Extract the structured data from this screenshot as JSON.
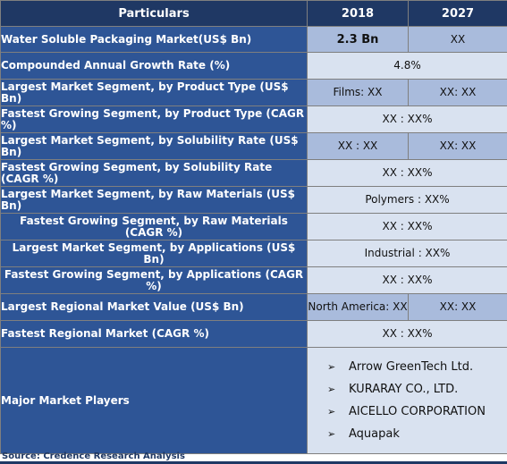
{
  "header": {
    "particulars": "Particulars",
    "year_2018": "2018",
    "year_2027": "2027"
  },
  "rows": [
    {
      "label": "Water Soluble Packaging Market(US$ Bn)",
      "v2018": "2.3 Bn",
      "v2027": "XX"
    },
    {
      "label": "Compounded Annual Growth Rate (%)",
      "value": "4.8%"
    },
    {
      "label": "Largest Market Segment, by Product Type (US$ Bn)",
      "v2018": "Films: XX",
      "v2027": "XX: XX"
    },
    {
      "label": "Fastest Growing Segment, by Product Type (CAGR %)",
      "value": "XX : XX%"
    },
    {
      "label": "Largest Market Segment, by Solubility Rate (US$ Bn)",
      "v2018": "XX : XX",
      "v2027": "XX: XX"
    },
    {
      "label": "Fastest Growing Segment, by Solubility Rate (CAGR %)",
      "value": "XX : XX%"
    },
    {
      "label": "Largest Market Segment, by Raw Materials (US$ Bn)",
      "value": "Polymers : XX%"
    },
    {
      "label": "Fastest Growing Segment, by Raw Materials (CAGR %)",
      "value": "XX : XX%"
    },
    {
      "label": "Largest Market Segment, by Applications (US$ Bn)",
      "value": "Industrial : XX%"
    },
    {
      "label": "Fastest Growing Segment, by Applications (CAGR %)",
      "value": "XX : XX%"
    },
    {
      "label": "Largest Regional Market Value (US$ Bn)",
      "v2018": "North America: XX",
      "v2027": "XX: XX"
    },
    {
      "label": "Fastest Regional Market (CAGR %)",
      "value": "XX : XX%"
    }
  ],
  "players": {
    "label": "Major Market Players",
    "items": [
      "Arrow GreenTech Ltd.",
      "KURARAY CO., LTD.",
      "AICELLO CORPORATION",
      "Aquapak"
    ]
  },
  "source": "Source: Credence Research Analysis",
  "colors": {
    "header": "#1f3864",
    "label": "#2e5596",
    "value_dark": "#a9bbdc",
    "value_light": "#d9e2f0"
  }
}
